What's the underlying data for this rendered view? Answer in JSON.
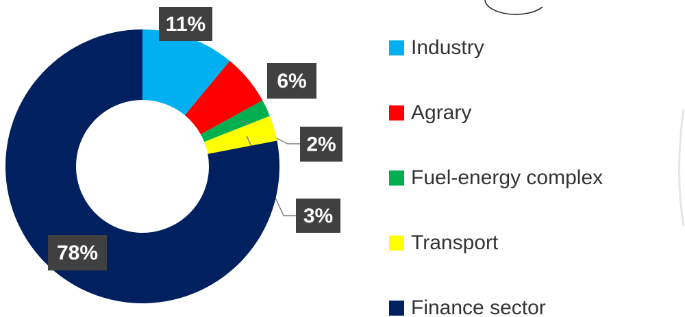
{
  "chart_data": {
    "type": "pie",
    "categories": [
      "Industry",
      "Agrary",
      "Fuel-energy complex",
      "Transport",
      "Finance sector"
    ],
    "values": [
      11,
      6,
      2,
      3,
      78
    ],
    "value_labels": [
      "11%",
      "6%",
      "2%",
      "3%",
      "78%"
    ],
    "colors": [
      "#00b0f0",
      "#ff0000",
      "#00b050",
      "#ffff00",
      "#002060"
    ],
    "legend": "right"
  }
}
